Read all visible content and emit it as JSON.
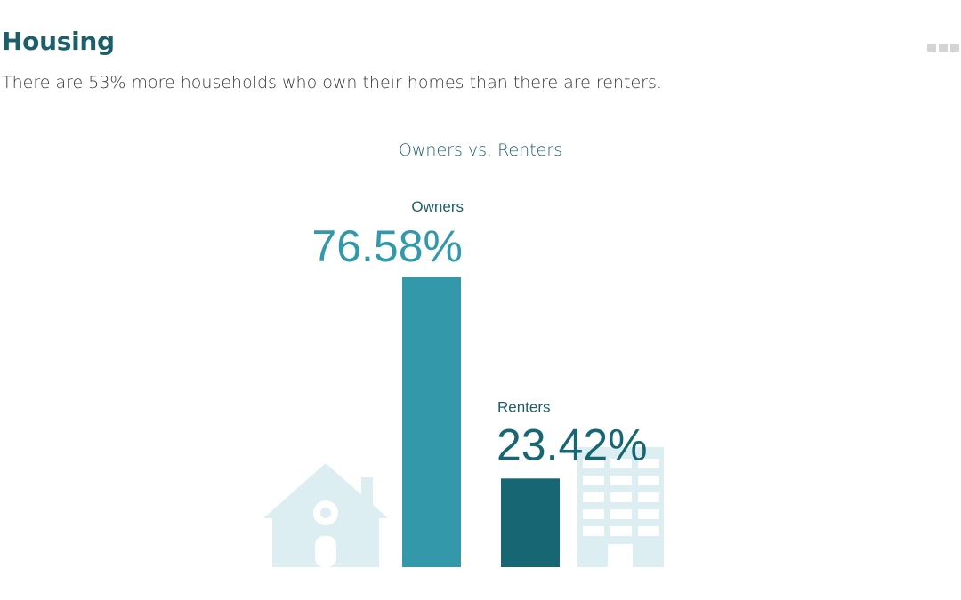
{
  "header": {
    "title": "Housing",
    "subtitle": "There are 53% more households who own their homes than there are renters."
  },
  "colors": {
    "heading": "#1c5f6b",
    "owners": "#3399aa",
    "renters": "#176674",
    "label": "#1c5f6b",
    "decor": "#ddeef2"
  },
  "icons": {
    "left": "house-icon",
    "right": "apartment-building-icon",
    "menu": "more-options-icon"
  },
  "chart_data": {
    "type": "bar",
    "title": "Owners vs. Renters",
    "categories": [
      "Owners",
      "Renters"
    ],
    "values": [
      76.58,
      23.42
    ],
    "value_labels": [
      "76.58%",
      "23.42%"
    ],
    "ylim": [
      0,
      100
    ],
    "grid": false,
    "legend": "none"
  }
}
